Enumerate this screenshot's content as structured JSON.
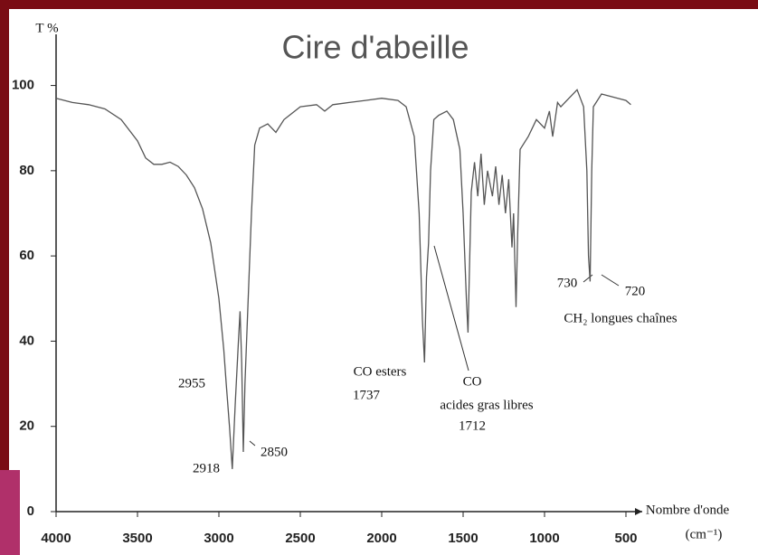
{
  "chart_data": {
    "type": "line",
    "title": "Cire d'abeille",
    "ylabel": "T %",
    "xlabel": "Nombre d'onde",
    "xunit": "(cm⁻¹)",
    "x": [
      4000,
      3900,
      3800,
      3700,
      3600,
      3500,
      3450,
      3400,
      3350,
      3300,
      3250,
      3200,
      3150,
      3100,
      3050,
      3000,
      2970,
      2955,
      2935,
      2918,
      2900,
      2880,
      2870,
      2860,
      2850,
      2840,
      2800,
      2780,
      2750,
      2700,
      2650,
      2600,
      2500,
      2400,
      2350,
      2300,
      2200,
      2100,
      2000,
      1900,
      1850,
      1800,
      1770,
      1750,
      1737,
      1725,
      1712,
      1700,
      1680,
      1650,
      1600,
      1560,
      1520,
      1500,
      1480,
      1470,
      1462,
      1450,
      1430,
      1410,
      1390,
      1370,
      1350,
      1320,
      1300,
      1280,
      1260,
      1240,
      1220,
      1200,
      1190,
      1175,
      1165,
      1150,
      1100,
      1050,
      1000,
      970,
      950,
      920,
      900,
      850,
      800,
      780,
      760,
      740,
      730,
      720,
      710,
      700,
      650,
      600,
      550,
      500,
      470
    ],
    "series": [
      {
        "color": "#555555",
        "values": [
          97,
          96,
          95.5,
          94.5,
          92,
          87,
          83,
          81.5,
          81.5,
          82,
          81,
          79,
          76,
          71,
          63,
          50,
          38,
          30,
          20,
          10,
          25,
          40,
          47,
          35,
          14,
          30,
          70,
          86,
          90,
          91,
          89,
          92,
          95,
          95.5,
          94,
          95.5,
          96,
          96.5,
          97,
          96.5,
          95,
          88,
          70,
          45,
          35,
          55,
          63,
          80,
          92,
          93,
          94,
          92,
          85,
          70,
          50,
          42,
          55,
          75,
          82,
          74,
          84,
          72,
          80,
          74,
          81,
          72,
          79,
          70,
          78,
          62,
          70,
          48,
          65,
          85,
          88,
          92,
          90,
          94,
          88,
          96,
          95,
          97,
          99,
          97,
          95,
          80,
          60,
          54,
          80,
          95,
          98,
          97.5,
          97,
          96.5,
          95.5
        ]
      }
    ],
    "xlim": [
      4000,
      400
    ],
    "ylim": [
      0,
      112
    ],
    "xticks": [
      4000,
      3500,
      3000,
      2500,
      2000,
      1500,
      1000,
      500
    ],
    "yticks": [
      0,
      20,
      40,
      60,
      80,
      100
    ],
    "grid": false,
    "annotations": [
      "2955",
      "2918",
      "2850",
      "CO esters",
      "1737",
      "CO",
      "acides gras libres",
      "1712",
      "730",
      "720",
      "CH₂ longues chaînes"
    ]
  }
}
